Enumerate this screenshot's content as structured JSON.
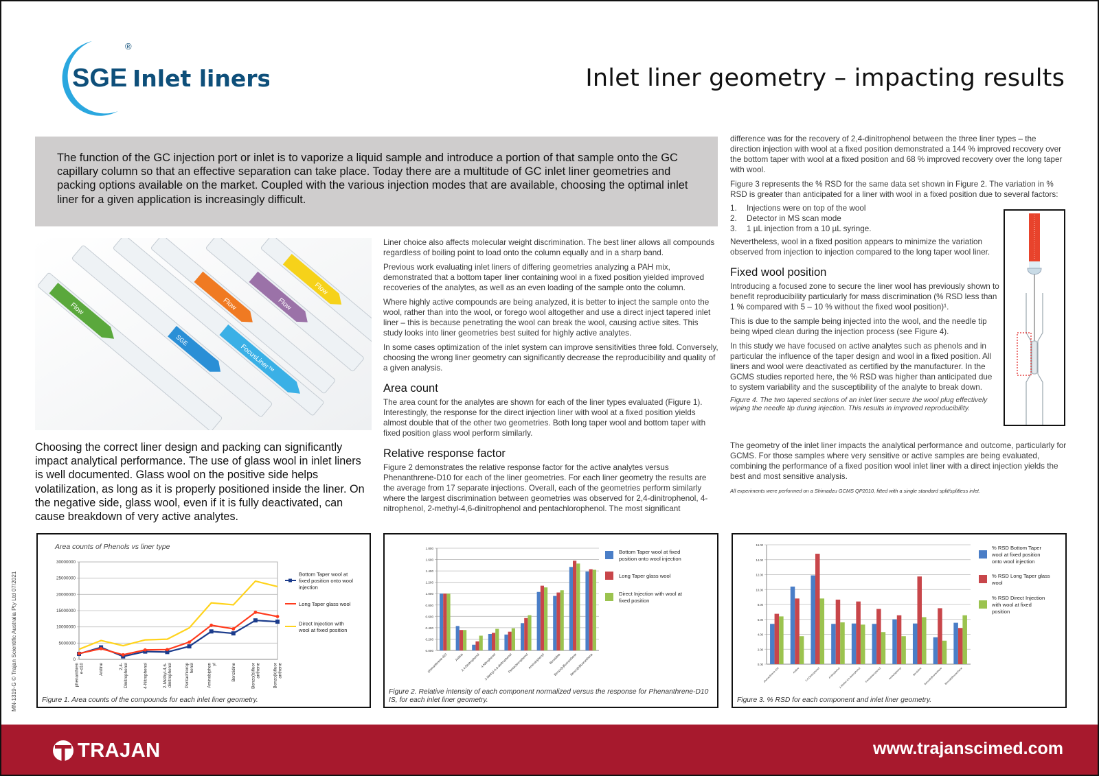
{
  "header": {
    "logo_brand": "SGE",
    "logo_product": "Inlet liners",
    "logo_registered": "®",
    "title": "Inlet liner geometry – impacting results"
  },
  "intro": "The function of the GC injection port or inlet is to vaporize a liquid sample and introduce a portion of that sample onto the GC capillary column so that an effective separation can take place. Today there are a multitude of GC inlet liner geometries and packing options available on the market. Coupled with the various injection modes that are available, choosing the optimal inlet liner for a given application is increasingly difficult.",
  "photo": {
    "labels": [
      "SGE",
      "Flow",
      "FocusLiner™"
    ]
  },
  "lead": "Choosing the correct liner design and packing can significantly impact analytical performance. The use of glass wool in inlet liners is well documented. Glass wool on the positive side helps volatilization, as long as it is properly positioned inside the liner. On the negative side, glass wool, even if it is fully deactivated, can cause breakdown of very active analytes.",
  "column2": {
    "p1": "Liner choice also affects molecular weight discrimination. The best liner allows all compounds regardless of boiling point to load onto the column equally and in a sharp band.",
    "p2": "Previous work evaluating inlet liners of differing geometries analyzing a PAH mix, demonstrated that a bottom taper liner containing wool in a fixed position yielded improved recoveries of the analytes, as well as an even loading of the sample onto the column.",
    "p3": "Where highly active compounds are being analyzed, it is better to inject the sample onto the wool, rather than into the wool, or forego wool altogether and use a direct inject tapered inlet liner – this is because penetrating the wool can break the wool, causing active sites. This study looks into liner geometries best suited for highly active analytes.",
    "p4": "In some cases optimization of the inlet system can improve sensitivities three fold. Conversely, choosing the wrong liner geometry can significantly decrease the reproducibility and quality of a given analysis.",
    "h_area": "Area count",
    "p_area": "The area count for the analytes are shown for each of the liner types evaluated (Figure 1). Interestingly, the response for the direct injection liner with wool at a fixed position yields almost double that of the other two geometries. Both long taper wool and bottom taper with fixed position glass wool perform similarly.",
    "h_rrf": "Relative response factor",
    "p_rrf": "Figure 2 demonstrates the relative response factor for the active analytes versus Phenanthrene-D10 for each of the liner geometries. For each liner geometry the results are the average from 17 separate injections. Overall, each of the geometries perform similarly where the largest discrimination between geometries was observed for 2,4-dinitrophenol, 4-nitrophenol, 2-methyl-4,6-dinitrophenol and pentachlorophenol. The most significant"
  },
  "column3": {
    "p1": "difference was for the recovery of 2,4-dinitrophenol between the three liner types – the direction injection with wool at a fixed position demonstrated a 144 % improved recovery over the bottom taper with wool at a fixed position and 68 % improved recovery over the long taper with wool.",
    "p2": "Figure 3 represents the % RSD for the same data set shown in Figure 2. The variation in % RSD is greater than anticipated for a liner with wool in a fixed position due to several factors:",
    "list": [
      {
        "num": "1.",
        "text": "Injections were on top of the wool"
      },
      {
        "num": "2.",
        "text": "Detector in MS scan mode"
      },
      {
        "num": "3.",
        "text": "1 µL injection from a 10 µL syringe."
      }
    ],
    "p3": "Nevertheless, wool in a fixed position appears to minimize the variation observed from injection to injection compared to the long taper wool liner.",
    "h_fixed": "Fixed wool position",
    "p4": "Introducing a focused zone to secure the liner wool has previously shown to benefit reproducibility particularly for mass discrimination (% RSD less than 1 % compared with 5 – 10 % without the fixed wool position)¹.",
    "p5": "This is due to the sample being injected into the wool, and the needle tip being wiped clean during the injection process (see Figure 4).",
    "p6": "In this study we have focused on active analytes such as phenols and in particular the influence of the taper design and wool in a fixed position. All liners and wool were deactivated as certified by the manufacturer. In the GCMS studies reported here, the % RSD was higher than anticipated due to system variability and the susceptibility of the analyte to break down.",
    "fig4_caption": "Figure 4. The two tapered sections of an inlet liner secure the wool plug effectively wiping the needle tip during injection. This results in improved reproducibility.",
    "conclusion": "The geometry of the inlet liner impacts the analytical performance and outcome, particularly for GCMS. For those samples where very sensitive or active samples are being evaluated, combining the performance of a fixed position wool inlet liner with a direct injection yields the best and most sensitive analysis.",
    "footnote": "All experiments were performed on a Shimadzu GCMS QP2010, fitted with a single standard split/splitless inlet."
  },
  "side_text": "MN-1319-G © Trajan Scientific Australia Pty Ltd 07/2021",
  "footer": {
    "brand": "TRAJAN",
    "url": "www.trajanscimed.com",
    "background": "#a7192d"
  },
  "chart_data": [
    {
      "type": "line",
      "title": "Area counts of Phenols vs liner type",
      "caption": "Figure 1. Area counts of the compounds for each inlet liner geometry.",
      "categories": [
        [
          "phenanthren",
          "e-d10"
        ],
        [
          "Aniline"
        ],
        [
          "2,4-",
          "Dinitrophenol"
        ],
        [
          "4-Nitrophenol"
        ],
        [
          "2-Methyl-4,6-",
          "dinitrophenol"
        ],
        [
          "Pentachlorop",
          "henol"
        ],
        [
          "Aminobiphen",
          "yl"
        ],
        [
          "Benzidine"
        ],
        [
          "Benzo(b)fluor",
          "anthene"
        ],
        [
          "Benzo(k)fluor",
          "anthene"
        ]
      ],
      "ylim": [
        0,
        30000000
      ],
      "yticks": [
        "0",
        "5000000",
        "10000000",
        "15000000",
        "20000000",
        "25000000",
        "30000000"
      ],
      "grid": true,
      "legend": "right",
      "series": [
        {
          "name": "Bottom Taper wool at fixed position onto wool injection",
          "color": "#1c3c8c",
          "marker": "square",
          "values": [
            1700000,
            3700000,
            900000,
            2400000,
            2250000,
            4000000,
            8600000,
            8000000,
            12000000,
            11600000
          ]
        },
        {
          "name": "Long Taper glass wool",
          "color": "#ff3a1c",
          "marker": "cross",
          "values": [
            1800000,
            3300000,
            1400000,
            2900000,
            3000000,
            5300000,
            10500000,
            9400000,
            14500000,
            13200000
          ]
        },
        {
          "name": "Direct Injection with wool at fixed position",
          "color": "#ffd31c",
          "marker": "none",
          "values": [
            3100000,
            5800000,
            4200000,
            6000000,
            6200000,
            9700000,
            17400000,
            16800000,
            24100000,
            22400000
          ]
        }
      ]
    },
    {
      "type": "bar",
      "caption": "Figure 2. Relative intensity of each component normalized versus the response for Phenanthrene-D10 IS, for each inlet liner geometry.",
      "categories": [
        "phenanthrene-d10",
        "Aniline",
        "2,4-Dinitrophenol",
        "4-Nitrophenol",
        "2-Methyl-4,6-dinitrophenol",
        "Pentachlorophenol",
        "Aminobiphenyl",
        "Benzidine",
        "Benzo(b)fluoranthene",
        "Benzo(k)fluoranthene"
      ],
      "ylim": [
        0,
        1.8
      ],
      "yticks": [
        "0.000",
        "0.200",
        "0.400",
        "0.600",
        "0.800",
        "1.000",
        "1.200",
        "1.400",
        "1.600",
        "1.800"
      ],
      "grid": true,
      "legend": "right",
      "series": [
        {
          "name": "Bottom Taper wool at fixed position onto wool injection",
          "color": "#4a7ec7",
          "values": [
            1.0,
            0.43,
            0.1,
            0.29,
            0.28,
            0.48,
            1.03,
            0.96,
            1.47,
            1.39
          ]
        },
        {
          "name": "Long Taper glass wool",
          "color": "#c8464a",
          "values": [
            1.0,
            0.36,
            0.16,
            0.31,
            0.33,
            0.57,
            1.14,
            1.02,
            1.58,
            1.43
          ]
        },
        {
          "name": "Direct Injection with wool at fixed position",
          "color": "#9bc34f",
          "values": [
            1.0,
            0.36,
            0.26,
            0.38,
            0.39,
            0.62,
            1.11,
            1.06,
            1.53,
            1.42
          ]
        }
      ]
    },
    {
      "type": "bar",
      "caption": "Figure 3. % RSD for each component and inlet liner geometry.",
      "categories": [
        "phenanthrene-d10",
        "Aniline",
        "2,4-Dinitrophenol",
        "4-Nitrophenol",
        "2-Methyl-4,6-dinitrophenol",
        "Pentachlorophenol",
        "Aminobiphenyl",
        "Benzidine",
        "Benzo(b)fluoranthene",
        "Benzo(k)fluoranthene"
      ],
      "ylim": [
        0,
        16
      ],
      "yticks": [
        "0.00",
        "2.00",
        "4.00",
        "6.00",
        "8.00",
        "10.00",
        "12.00",
        "14.00",
        "16.00"
      ],
      "grid": true,
      "legend": "right",
      "series": [
        {
          "name": "% RSD Bottom Taper wool at fixed position onto wool injection",
          "color": "#4a7ec7",
          "values": [
            5.4,
            10.4,
            11.9,
            5.4,
            5.45,
            5.4,
            6.0,
            5.45,
            3.6,
            5.55
          ]
        },
        {
          "name": "% RSD Long Taper glass wool",
          "color": "#c8464a",
          "values": [
            6.75,
            8.8,
            14.8,
            8.65,
            8.4,
            7.4,
            6.55,
            11.75,
            7.5,
            4.85
          ]
        },
        {
          "name": "% RSD Direct Injection with wool at fixed position",
          "color": "#9bc34f",
          "values": [
            6.4,
            3.75,
            8.8,
            5.6,
            5.3,
            4.3,
            3.75,
            6.3,
            3.15,
            6.55
          ]
        }
      ]
    }
  ]
}
